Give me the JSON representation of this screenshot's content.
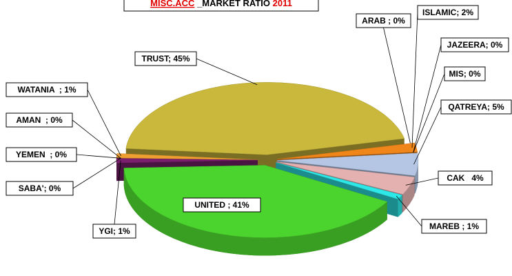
{
  "chart_data": {
    "type": "pie",
    "depth3d": true,
    "title": [
      "MISC.ACC",
      "_MARKET RATIO",
      "2011"
    ],
    "values": [
      45,
      0,
      2,
      0,
      0,
      5,
      4,
      1,
      41,
      1,
      0,
      0,
      0,
      1
    ],
    "value_labels": [
      "TRUST; 45%",
      "ARAB ; 0%",
      "ISLAMIC; 2%",
      "JAZEERA; 0%",
      "MIS; 0%",
      "QATREYA; 5%",
      "CAK   4%",
      "MAREB ; 1%",
      "UNITED ; 41%",
      "YGI; 1%",
      "SABA'; 0%",
      "YEMEN  ; 0%",
      "AMAN  ; 0%",
      "WATANIA  ; 1%"
    ],
    "colors": [
      "#c9b83c",
      "#5a8ad0",
      "#f0861a",
      "#3a9a4a",
      "#8060b0",
      "#b4c6e4",
      "#e4b0b0",
      "#2ee8e8",
      "#4cd42e",
      "#7a1f6e",
      "#ff40ff",
      "#d04040",
      "#909090",
      "#f0a030"
    ]
  }
}
